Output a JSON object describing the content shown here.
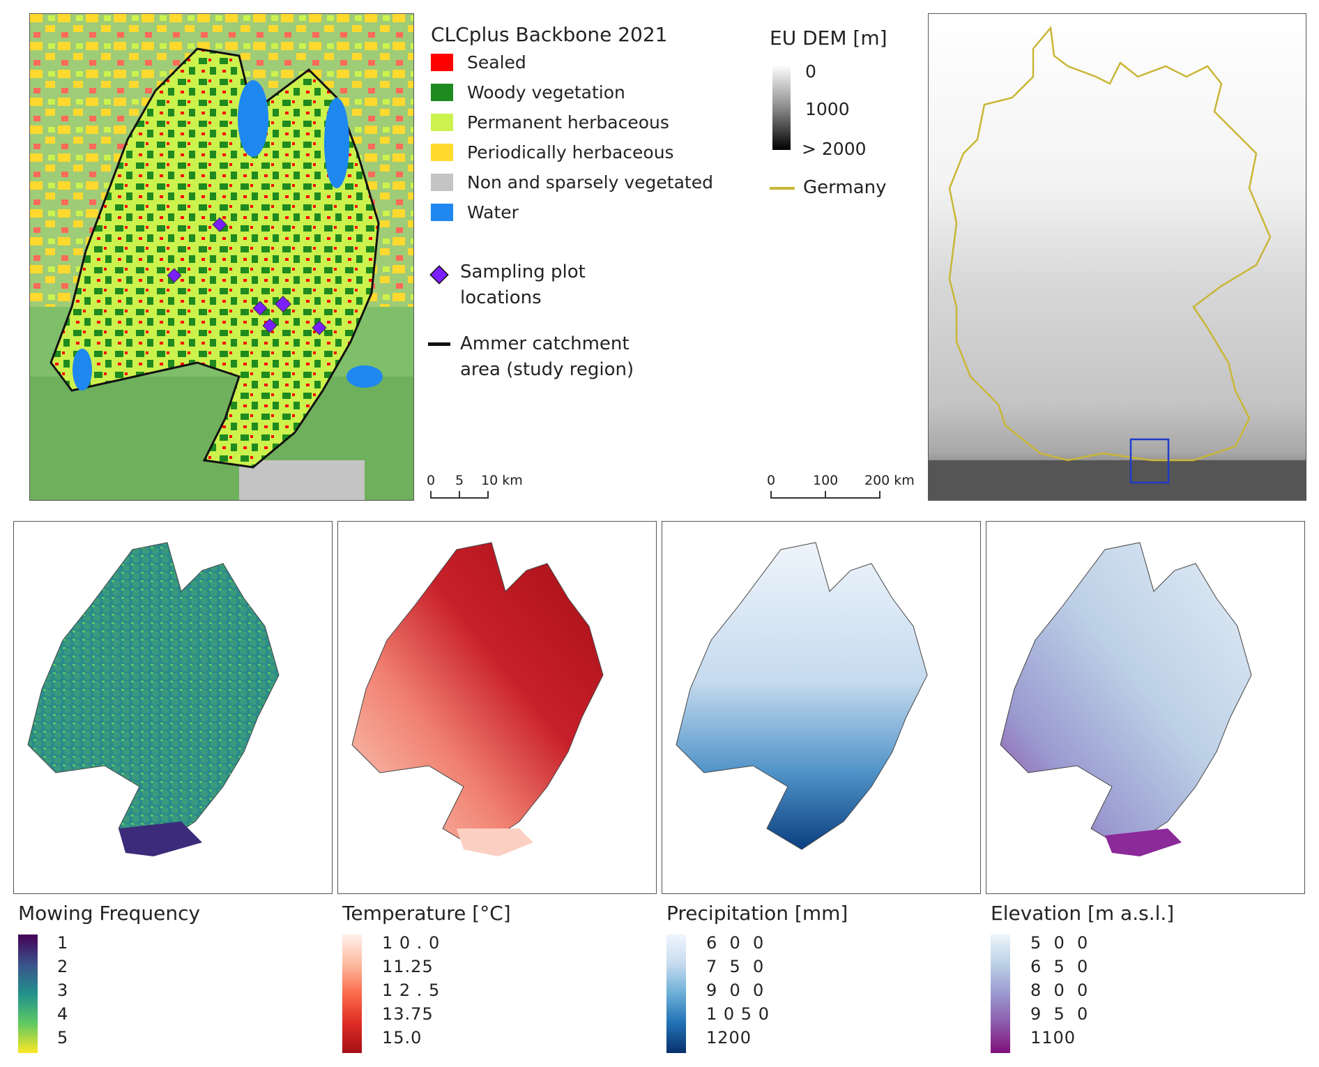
{
  "landcover_legend": {
    "title": "CLCplus Backbone 2021",
    "items": [
      {
        "label": "Sealed",
        "color": "#ff0000"
      },
      {
        "label": "Woody vegetation",
        "color": "#1f8a1f"
      },
      {
        "label": "Permanent herbaceous",
        "color": "#ccf24d"
      },
      {
        "label": "Periodically herbaceous",
        "color": "#ffd92e"
      },
      {
        "label": "Non and sparsely vegetated",
        "color": "#c4c4c4"
      },
      {
        "label": "Water",
        "color": "#1e88f0"
      }
    ],
    "sampling_label_1": "Sampling plot",
    "sampling_label_2": "locations",
    "catchment_label_1": "Ammer catchment",
    "catchment_label_2": "area (study region)",
    "sampling_color": "#7a1fff"
  },
  "scale_small": {
    "ticks": [
      "0",
      "5",
      "10 km"
    ]
  },
  "dem_legend": {
    "title": "EU DEM [m]",
    "ticks": [
      "0",
      "1000",
      "> 2000"
    ],
    "boundary_label": "Germany",
    "boundary_color": "#c9b636"
  },
  "scale_large": {
    "ticks": [
      "0",
      "100",
      "200 km"
    ]
  },
  "bottom_legends": [
    {
      "title": "Mowing Frequency",
      "ticks": [
        "1",
        "2",
        "3",
        "4",
        "5"
      ],
      "colors": [
        "#440154",
        "#3b528b",
        "#21918c",
        "#5ec962",
        "#fde725"
      ]
    },
    {
      "title": "Temperature [°C]",
      "ticks": [
        "1 0 . 0",
        "11.25",
        "1 2 . 5",
        "13.75",
        "15.0"
      ],
      "colors": [
        "#fff0ea",
        "#fcbba1",
        "#fb6a4a",
        "#de2d26",
        "#a50f15"
      ]
    },
    {
      "title": "Precipitation [mm]",
      "ticks": [
        "6  0  0",
        "7  5  0",
        "9  0  0",
        "1 0 5 0",
        "1200"
      ],
      "colors": [
        "#f0f6fd",
        "#c6dbef",
        "#6baed6",
        "#2171b5",
        "#08306b"
      ]
    },
    {
      "title": "Elevation [m a.s.l.]",
      "ticks": [
        "5  0  0",
        "6  5  0",
        "8  0  0",
        "9  5  0",
        "1100"
      ],
      "colors": [
        "#edf6fb",
        "#bcd0e6",
        "#9a9ad0",
        "#8c5aaa",
        "#810f7c"
      ]
    }
  ]
}
